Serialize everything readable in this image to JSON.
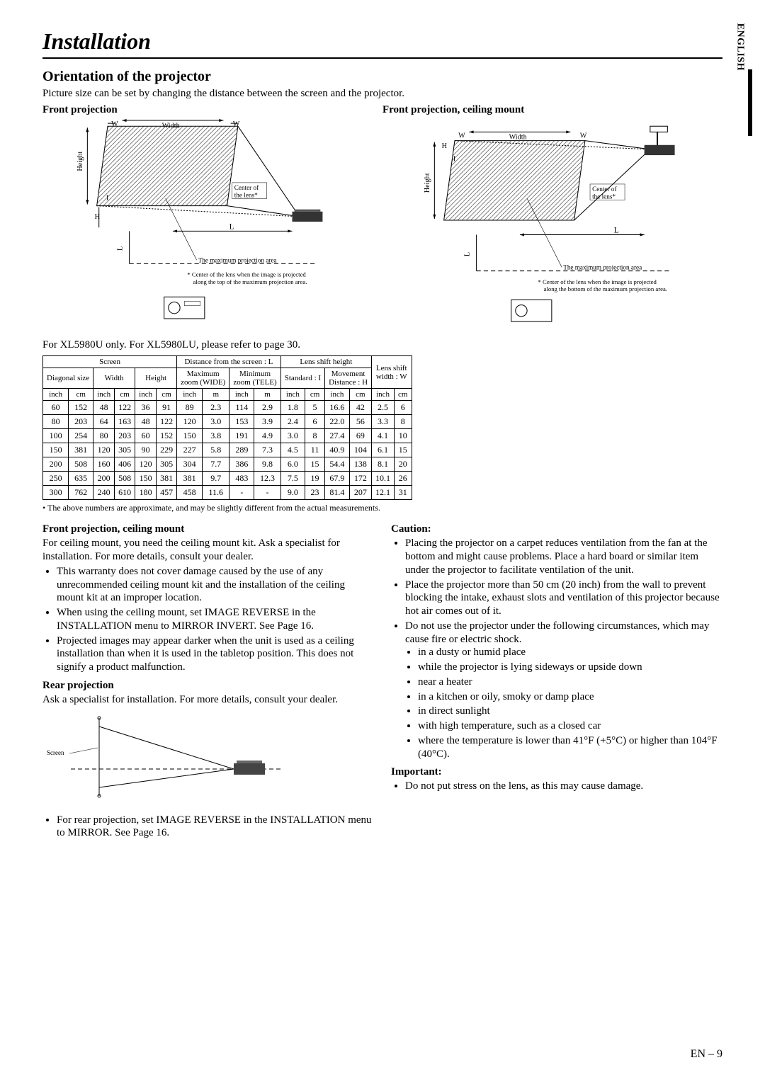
{
  "page": {
    "title": "Installation",
    "section": "Orientation of the projector",
    "intro": "Picture size can be set by changing the distance between the screen and the projector.",
    "sidebar_label": "ENGLISH",
    "pagenum": "EN – 9"
  },
  "diagrams": {
    "left_heading": "Front projection",
    "right_heading": "Front projection, ceiling mount",
    "width_label": "Width",
    "height_label": "Height",
    "w_label": "W",
    "h_label": "H",
    "l_label": "L",
    "center_lens": "Center of\nthe lens*",
    "max_area": "The maximum projection area",
    "footnote_left": "* Center of the lens when the image is projected\n   along the top of the maximum projection area.",
    "footnote_right": "* Center of the lens when the image is projected\n   along the bottom of the maximum projection area.",
    "screen_label": "Screen"
  },
  "table": {
    "note": "For XL5980U only. For XL5980LU, please refer to page 30.",
    "headers_top": [
      "Screen",
      "Distance from the screen : L",
      "Lens shift height",
      "Lens shift\nwidth : W"
    ],
    "headers_mid": [
      "Diagonal size",
      "Width",
      "Height",
      "Maximum\nzoom (WIDE)",
      "Minimum\nzoom (TELE)",
      "Standard : I",
      "Movement\nDistance : H"
    ],
    "units": [
      "inch",
      "cm",
      "inch",
      "cm",
      "inch",
      "cm",
      "inch",
      "m",
      "inch",
      "m",
      "inch",
      "cm",
      "inch",
      "cm",
      "inch",
      "cm"
    ],
    "rows": [
      [
        "60",
        "152",
        "48",
        "122",
        "36",
        "91",
        "89",
        "2.3",
        "114",
        "2.9",
        "1.8",
        "5",
        "16.6",
        "42",
        "2.5",
        "6"
      ],
      [
        "80",
        "203",
        "64",
        "163",
        "48",
        "122",
        "120",
        "3.0",
        "153",
        "3.9",
        "2.4",
        "6",
        "22.0",
        "56",
        "3.3",
        "8"
      ],
      [
        "100",
        "254",
        "80",
        "203",
        "60",
        "152",
        "150",
        "3.8",
        "191",
        "4.9",
        "3.0",
        "8",
        "27.4",
        "69",
        "4.1",
        "10"
      ],
      [
        "150",
        "381",
        "120",
        "305",
        "90",
        "229",
        "227",
        "5.8",
        "289",
        "7.3",
        "4.5",
        "11",
        "40.9",
        "104",
        "6.1",
        "15"
      ],
      [
        "200",
        "508",
        "160",
        "406",
        "120",
        "305",
        "304",
        "7.7",
        "386",
        "9.8",
        "6.0",
        "15",
        "54.4",
        "138",
        "8.1",
        "20"
      ],
      [
        "250",
        "635",
        "200",
        "508",
        "150",
        "381",
        "381",
        "9.7",
        "483",
        "12.3",
        "7.5",
        "19",
        "67.9",
        "172",
        "10.1",
        "26"
      ],
      [
        "300",
        "762",
        "240",
        "610",
        "180",
        "457",
        "458",
        "11.6",
        "-",
        "-",
        "9.0",
        "23",
        "81.4",
        "207",
        "12.1",
        "31"
      ]
    ],
    "footnote": "•   The above numbers are approximate, and may be slightly different from the actual measurements."
  },
  "left_col": {
    "h1": "Front projection, ceiling mount",
    "p1": "For ceiling mount, you need the ceiling mount kit. Ask a specialist for installation. For more details, consult your dealer.",
    "bullets1": [
      "This warranty does not cover damage caused by the use of any unrecommended ceiling mount kit and the installation of the ceiling mount kit at an improper location.",
      "When using the ceiling mount, set IMAGE REVERSE in the INSTALLATION menu to MIRROR INVERT. See Page 16.",
      "Projected images may appear darker when the unit is used as a ceiling installation than when it is used in the tabletop position. This does not signify a product malfunction."
    ],
    "h2": "Rear projection",
    "p2": "Ask a specialist for installation.  For more details, consult your dealer.",
    "bullets2": [
      "For rear projection, set IMAGE REVERSE in the INSTALLATION menu to MIRROR.  See Page 16."
    ]
  },
  "right_col": {
    "h1": "Caution:",
    "bullets1": [
      "Placing the projector on a carpet reduces ventilation from the fan at the bottom and might cause problems. Place a hard board or similar item under the projector to facilitate ventilation of the unit.",
      "Place the projector more than 50 cm (20 inch) from the wall to prevent blocking the intake, exhaust slots and ventilation of this projector because hot air comes out of it.",
      "Do not use the projector under the following circumstances, which may cause fire or electric shock."
    ],
    "inner_bullets": [
      "in a dusty or humid place",
      "while the projector is lying sideways or upside down",
      "near a heater",
      "in a kitchen or oily, smoky or damp place",
      "in direct sunlight",
      "with high temperature, such as a closed car",
      "where the temperature is lower than 41°F (+5°C) or higher than 104°F (40°C)."
    ],
    "h2": "Important:",
    "bullets2": [
      "Do not put stress on the lens, as this may cause damage."
    ]
  }
}
